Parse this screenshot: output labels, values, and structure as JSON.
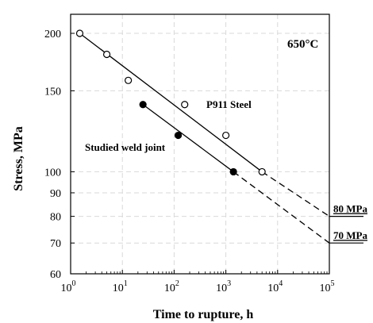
{
  "chart_data": {
    "type": "scatter",
    "xlabel": "Time to rupture, h",
    "ylabel": "Stress, MPa",
    "x_scale": "log",
    "y_scale": "log",
    "xlim": [
      1,
      100000
    ],
    "ylim": [
      60,
      220
    ],
    "x_ticks": [
      {
        "value": 1,
        "base": "10",
        "exp": "0"
      },
      {
        "value": 10,
        "base": "10",
        "exp": "1"
      },
      {
        "value": 100,
        "base": "10",
        "exp": "2"
      },
      {
        "value": 1000,
        "base": "10",
        "exp": "3"
      },
      {
        "value": 10000,
        "base": "10",
        "exp": "4"
      },
      {
        "value": 100000,
        "base": "10",
        "exp": "5"
      }
    ],
    "y_ticks": [
      60,
      70,
      80,
      90,
      100,
      150,
      200
    ],
    "grid": true,
    "temperature_label": "650°C",
    "series": [
      {
        "name": "P911 Steel",
        "marker": "open-circle",
        "points": [
          [
            1.5,
            200
          ],
          [
            5,
            180
          ],
          [
            13,
            158
          ],
          [
            160,
            140
          ],
          [
            1000,
            120
          ],
          [
            5000,
            100
          ]
        ],
        "fit_solid": [
          [
            1.5,
            200
          ],
          [
            5000,
            100
          ]
        ],
        "fit_dashed": [
          [
            5000,
            100
          ],
          [
            100000,
            80
          ]
        ]
      },
      {
        "name": "Studied weld joint",
        "marker": "filled-circle",
        "points": [
          [
            25,
            140
          ],
          [
            120,
            120
          ],
          [
            1400,
            100
          ]
        ],
        "fit_solid": [
          [
            25,
            140
          ],
          [
            1400,
            100
          ]
        ],
        "fit_dashed": [
          [
            1400,
            100
          ],
          [
            100000,
            70
          ]
        ]
      }
    ],
    "annotations": [
      {
        "text": "80 MPa",
        "y": 80
      },
      {
        "text": "70 MPa",
        "y": 70
      }
    ]
  }
}
